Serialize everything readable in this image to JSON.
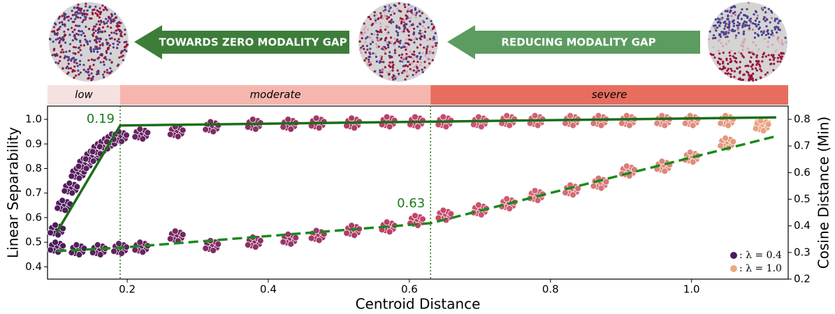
{
  "banner": {
    "arrows": [
      "TOWARDS ZERO MODALITY GAP",
      "REDUCING MODALITY GAP"
    ]
  },
  "chart_data": {
    "type": "scatter",
    "bands": {
      "labels": [
        "low",
        "moderate",
        "severe"
      ],
      "colors": [
        "#f6e1e1",
        "#f6b6ae",
        "#e76e5e"
      ]
    },
    "xlabel": "Centroid Distance",
    "ylabel": "Linear Separability",
    "y2label": "Cosine Distance (Min)",
    "xlim": [
      0.087,
      1.137
    ],
    "ylim": [
      0.35,
      1.054
    ],
    "y2lim": [
      0.2,
      0.85
    ],
    "xticks": [
      0.2,
      0.4,
      0.6,
      0.8,
      {
        "value": 1.0,
        "label": "1.0"
      }
    ],
    "yticks": [
      0.4,
      0.5,
      0.6,
      0.7,
      0.8,
      0.9,
      {
        "value": 1.0,
        "label": "1.0"
      }
    ],
    "y2ticks": [
      0.2,
      0.3,
      0.4,
      0.5,
      0.6,
      0.7,
      0.8
    ],
    "thresholds": [
      0.19,
      0.63
    ],
    "threshold_color": "#1a7a1a",
    "colormap": [
      "#4a1a5c",
      "#c3436b",
      "#eba982"
    ],
    "series": [
      {
        "x": [
          0.1,
          0.11,
          0.12,
          0.13,
          0.14,
          0.15,
          0.16,
          0.17,
          0.18,
          0.19,
          0.22,
          0.27,
          0.32,
          0.38,
          0.43,
          0.47,
          0.52,
          0.57,
          0.61,
          0.65,
          0.7,
          0.74,
          0.78,
          0.83,
          0.87,
          0.91,
          0.96,
          1.0,
          1.05,
          1.1
        ],
        "values": [
          0.55,
          0.65,
          0.72,
          0.78,
          0.82,
          0.85,
          0.88,
          0.9,
          0.92,
          0.93,
          0.94,
          0.95,
          0.97,
          0.98,
          0.98,
          0.985,
          0.985,
          0.99,
          0.99,
          0.99,
          0.99,
          0.995,
          0.995,
          0.995,
          0.995,
          0.995,
          0.995,
          0.995,
          0.995,
          0.98
        ]
      },
      {
        "axis": "y2",
        "x": [
          0.1,
          0.13,
          0.16,
          0.19,
          0.22,
          0.27,
          0.32,
          0.38,
          0.43,
          0.47,
          0.52,
          0.57,
          0.61,
          0.65,
          0.7,
          0.74,
          0.78,
          0.83,
          0.87,
          0.91,
          0.96,
          1.0,
          1.05,
          1.1
        ],
        "values": [
          0.32,
          0.31,
          0.31,
          0.315,
          0.32,
          0.362,
          0.326,
          0.339,
          0.35,
          0.364,
          0.383,
          0.396,
          0.42,
          0.44,
          0.46,
          0.483,
          0.514,
          0.535,
          0.56,
          0.606,
          0.624,
          0.658,
          0.711,
          0.776
        ]
      }
    ],
    "fits": [
      {
        "style": "solid",
        "color": "#1a6e1a",
        "x": [
          0.1,
          0.19,
          1.12
        ],
        "values": [
          0.54,
          0.975,
          1.008
        ]
      },
      {
        "style": "dashed",
        "color": "#1a8a1a",
        "axis": "y2",
        "x": [
          0.1,
          0.19,
          0.63,
          1.12
        ],
        "values": [
          0.305,
          0.318,
          0.41,
          0.737
        ]
      }
    ],
    "legend": [
      {
        "label": ": λ = 0.4",
        "color": "#4a1a5c"
      },
      {
        "label": ": λ = 1.0",
        "color": "#eba982"
      }
    ],
    "legend_position": "lower right"
  }
}
